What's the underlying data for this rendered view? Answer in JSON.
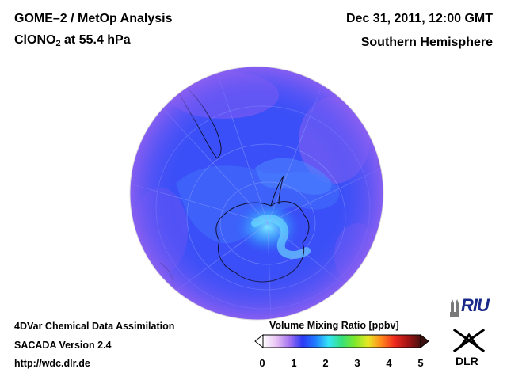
{
  "header": {
    "title_line1": "GOME–2 / MetOp Analysis",
    "species_prefix": "ClONO",
    "species_subscript": "2",
    "species_suffix": " at 55.4 hPa",
    "datetime": "Dec 31, 2011, 12:00 GMT",
    "hemisphere": "Southern Hemisphere"
  },
  "footer": {
    "line1": "4DVar Chemical Data Assimilation",
    "line2": "SACADA Version 2.4",
    "line3": "http://wdc.dlr.de"
  },
  "colorbar": {
    "title": "Volume Mixing Ratio [ppbv]",
    "ticks": [
      "0",
      "1",
      "2",
      "3",
      "4",
      "5"
    ],
    "min": 0,
    "max": 5,
    "stops": [
      "#ffffff",
      "#e9c4f4",
      "#a574f0",
      "#2b39f5",
      "#1f7cff",
      "#35e6f6",
      "#36e07b",
      "#7fe82a",
      "#e8e825",
      "#ff8a1c",
      "#ef2a1f",
      "#a51414",
      "#4a1010"
    ]
  },
  "logos": {
    "riu": "RIU",
    "dlr": "DLR"
  },
  "map": {
    "projection": "orthographic",
    "hemisphere": "south",
    "background_color": "#3a4ff7"
  }
}
